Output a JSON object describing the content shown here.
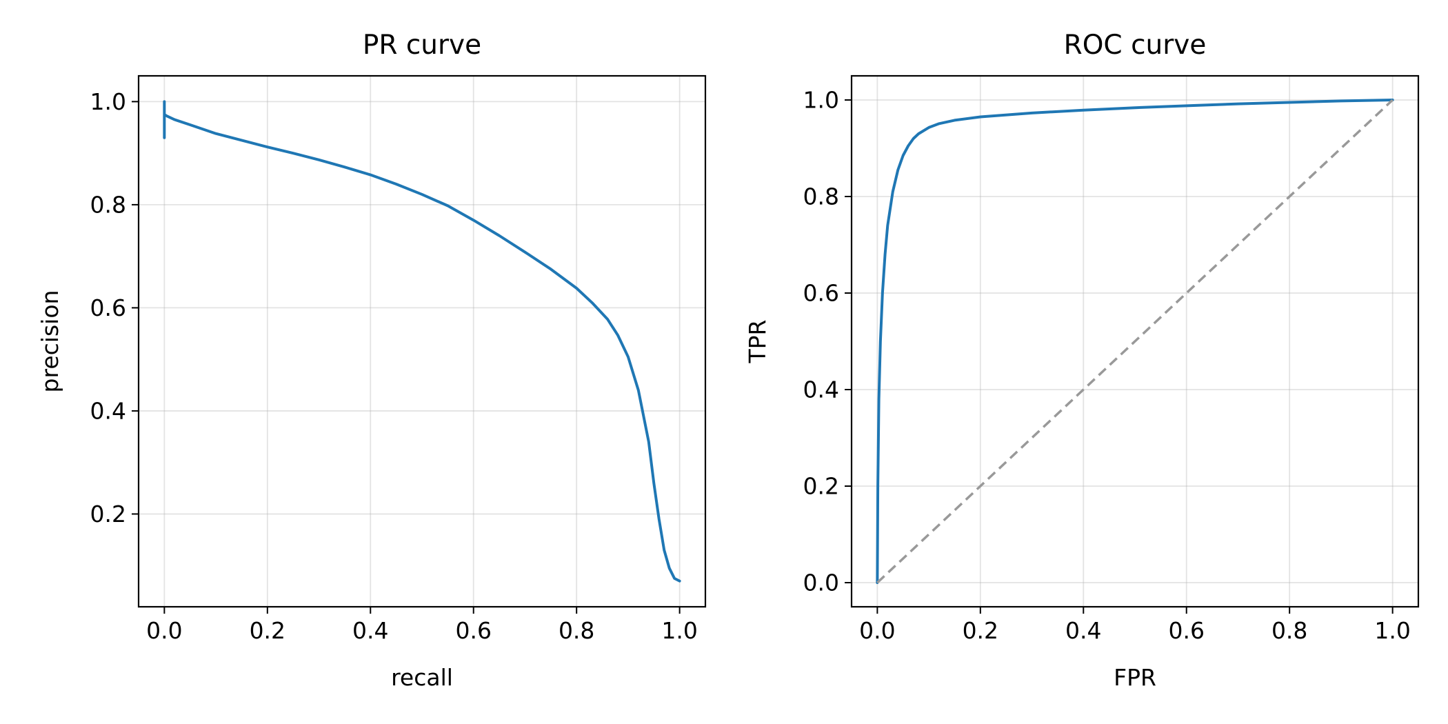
{
  "chart_data": [
    {
      "id": "pr",
      "type": "line",
      "title": "PR curve",
      "xlabel": "recall",
      "ylabel": "precision",
      "xlim": [
        -0.05,
        1.05
      ],
      "ylim": [
        0.02,
        1.05
      ],
      "xticks": [
        0.0,
        0.2,
        0.4,
        0.6,
        0.8,
        1.0
      ],
      "xtick_labels": [
        "0.0",
        "0.2",
        "0.4",
        "0.6",
        "0.8",
        "1.0"
      ],
      "yticks": [
        0.2,
        0.4,
        0.6,
        0.8,
        1.0
      ],
      "ytick_labels": [
        "0.2",
        "0.4",
        "0.6",
        "0.8",
        "1.0"
      ],
      "grid": true,
      "series": [
        {
          "color": "#1f77b4",
          "style": "solid",
          "x": [
            0.0,
            0.0,
            0.0,
            0.0,
            0.0,
            0.005,
            0.02,
            0.05,
            0.1,
            0.15,
            0.2,
            0.25,
            0.3,
            0.35,
            0.4,
            0.45,
            0.5,
            0.55,
            0.6,
            0.65,
            0.7,
            0.75,
            0.8,
            0.83,
            0.86,
            0.88,
            0.9,
            0.92,
            0.94,
            0.95,
            0.96,
            0.97,
            0.98,
            0.99,
            1.0
          ],
          "y": [
            0.93,
            1.0,
            0.985,
            0.97,
            0.975,
            0.972,
            0.965,
            0.955,
            0.938,
            0.925,
            0.912,
            0.9,
            0.887,
            0.873,
            0.858,
            0.84,
            0.82,
            0.798,
            0.77,
            0.74,
            0.708,
            0.675,
            0.638,
            0.61,
            0.578,
            0.547,
            0.505,
            0.44,
            0.34,
            0.26,
            0.19,
            0.13,
            0.095,
            0.075,
            0.07
          ]
        }
      ]
    },
    {
      "id": "roc",
      "type": "line",
      "title": "ROC curve",
      "xlabel": "FPR",
      "ylabel": "TPR",
      "xlim": [
        -0.05,
        1.05
      ],
      "ylim": [
        -0.05,
        1.05
      ],
      "xticks": [
        0.0,
        0.2,
        0.4,
        0.6,
        0.8,
        1.0
      ],
      "xtick_labels": [
        "0.0",
        "0.2",
        "0.4",
        "0.6",
        "0.8",
        "1.0"
      ],
      "yticks": [
        0.0,
        0.2,
        0.4,
        0.6,
        0.8,
        1.0
      ],
      "ytick_labels": [
        "0.0",
        "0.2",
        "0.4",
        "0.6",
        "0.8",
        "1.0"
      ],
      "grid": true,
      "series": [
        {
          "color": "#1f77b4",
          "style": "solid",
          "x": [
            0.0,
            0.001,
            0.003,
            0.006,
            0.01,
            0.015,
            0.02,
            0.03,
            0.04,
            0.05,
            0.06,
            0.07,
            0.08,
            0.1,
            0.12,
            0.15,
            0.2,
            0.3,
            0.4,
            0.5,
            0.6,
            0.7,
            0.8,
            0.9,
            1.0
          ],
          "y": [
            0.0,
            0.2,
            0.38,
            0.5,
            0.6,
            0.68,
            0.74,
            0.81,
            0.855,
            0.885,
            0.905,
            0.92,
            0.93,
            0.943,
            0.951,
            0.958,
            0.965,
            0.973,
            0.979,
            0.984,
            0.988,
            0.992,
            0.995,
            0.998,
            1.0
          ]
        },
        {
          "color": "#999999",
          "style": "dashed",
          "x": [
            0.0,
            1.0
          ],
          "y": [
            0.0,
            1.0
          ]
        }
      ]
    }
  ]
}
